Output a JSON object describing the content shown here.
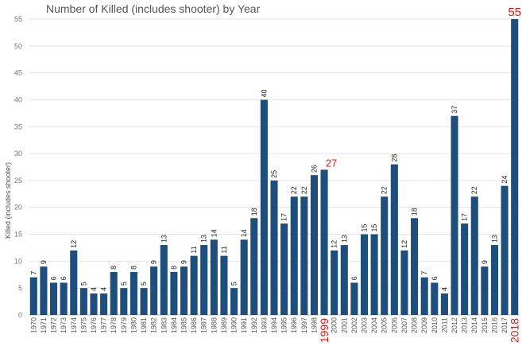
{
  "chart_data": {
    "type": "bar",
    "title": "Number of Killed (includes shooter) by Year",
    "ylabel": "Killed (includes shooter)",
    "xlabel": "",
    "ylim": [
      0,
      55
    ],
    "yticks": [
      0,
      5,
      10,
      15,
      20,
      25,
      30,
      35,
      40,
      45,
      50,
      55
    ],
    "grid": true,
    "bar_color": "#1d4e7c",
    "highlight_color": "#ee1111",
    "highlighted_years": [
      "1999",
      "2018"
    ],
    "categories": [
      "1970",
      "1971",
      "1972",
      "1973",
      "1974",
      "1975",
      "1976",
      "1977",
      "1978",
      "1979",
      "1980",
      "1981",
      "1982",
      "1983",
      "1984",
      "1985",
      "1986",
      "1987",
      "1988",
      "1989",
      "1990",
      "1991",
      "1992",
      "1993",
      "1994",
      "1995",
      "1996",
      "1997",
      "1998",
      "1999",
      "2000",
      "2001",
      "2002",
      "2003",
      "2004",
      "2005",
      "2006",
      "2007",
      "2008",
      "2009",
      "2010",
      "2011",
      "2012",
      "2013",
      "2014",
      "2015",
      "2016",
      "2017",
      "2018"
    ],
    "values": [
      7,
      9,
      6,
      6,
      12,
      5,
      4,
      4,
      8,
      5,
      8,
      5,
      9,
      13,
      8,
      9,
      11,
      13,
      14,
      11,
      5,
      14,
      18,
      40,
      25,
      17,
      22,
      22,
      26,
      27,
      12,
      13,
      6,
      15,
      15,
      22,
      28,
      12,
      18,
      7,
      6,
      4,
      37,
      17,
      22,
      9,
      13,
      24,
      55
    ]
  }
}
